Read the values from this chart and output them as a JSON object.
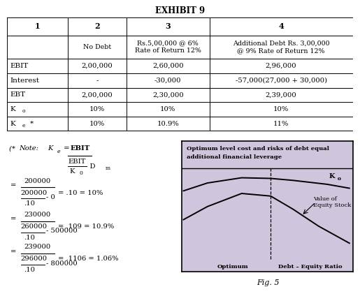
{
  "title": "EXHIBIT 9",
  "fig_caption": "Fig. 5",
  "col_headers": [
    "1",
    "2",
    "3",
    "4"
  ],
  "col2_header": "No Debt",
  "col3_header": "Rs.5,00,000 @ 6%\nRate of Return 12%",
  "col4_header": "Additional Debt Rs. 3,00,000\n@ 9% Rate of Return 12%",
  "rows": [
    [
      "EBIT",
      "2,00,000",
      "2,60,000",
      "2,96,000"
    ],
    [
      "Interest",
      "-",
      "-30,000",
      "-57,000(27,000 + 30,000)"
    ],
    [
      "EBT",
      "2,00,000",
      "2,30,000",
      "2,39,000"
    ],
    [
      "Ko",
      "10%",
      "10%",
      "10%"
    ],
    [
      "Ke*",
      "10%",
      "10.9%",
      "11%"
    ]
  ],
  "graph_text1": "Optimum level cost and risks of debt equal",
  "graph_text2": "additional financial leverage",
  "graph_bg": "#cfc5dc",
  "background_color": "#ffffff"
}
